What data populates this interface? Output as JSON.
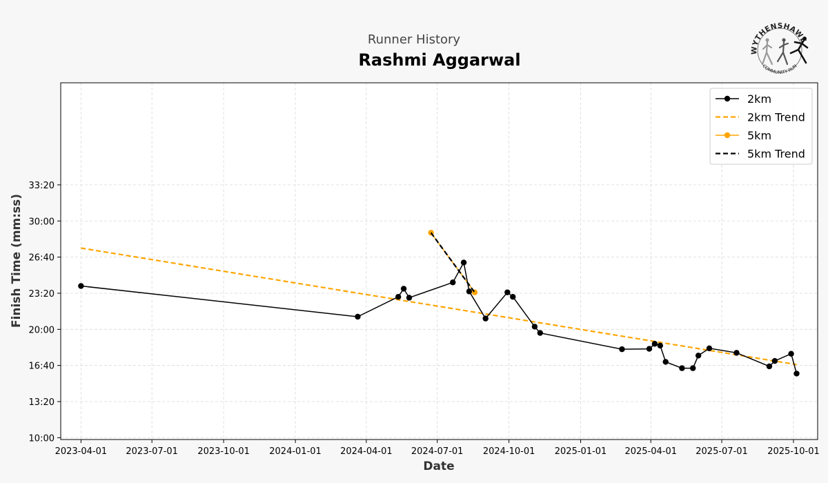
{
  "header": {
    "subtitle": "Runner History",
    "title": "Rashmi Aggarwal"
  },
  "logo": {
    "top_text": "WYTHENSHAWE",
    "bottom_text": "COMMUNITY RUN"
  },
  "chart_data": {
    "type": "line",
    "title": "Rashmi Aggarwal",
    "subtitle": "Runner History",
    "xlabel": "Date",
    "ylabel": "Finish Time (mm:ss)",
    "x_type": "date",
    "xlim": [
      "2023-03-06",
      "2025-11-01"
    ],
    "ylim_seconds": [
      590,
      2565
    ],
    "x_ticks": [
      "2023-04-01",
      "2023-07-01",
      "2023-10-01",
      "2024-01-01",
      "2024-04-01",
      "2024-07-01",
      "2024-10-01",
      "2025-01-01",
      "2025-04-01",
      "2025-07-01",
      "2025-10-01"
    ],
    "y_ticks": [
      "10:00",
      "13:20",
      "16:40",
      "20:00",
      "23:20",
      "26:40",
      "30:00",
      "33:20"
    ],
    "grid": true,
    "legend_position": "top-right",
    "series": [
      {
        "name": "2km",
        "style": "line-marker",
        "color": "#000000",
        "points": [
          [
            "2023-04-01",
            "24:00"
          ],
          [
            "2024-03-21",
            "21:10"
          ],
          [
            "2024-05-12",
            "23:00"
          ],
          [
            "2024-05-19",
            "23:45"
          ],
          [
            "2024-05-26",
            "22:55"
          ],
          [
            "2024-07-21",
            "24:20"
          ],
          [
            "2024-08-04",
            "26:10"
          ],
          [
            "2024-08-11",
            "23:30"
          ],
          [
            "2024-09-01",
            "21:00"
          ],
          [
            "2024-09-29",
            "23:25"
          ],
          [
            "2024-10-06",
            "23:00"
          ],
          [
            "2024-11-03",
            "20:15"
          ],
          [
            "2024-11-10",
            "19:40"
          ],
          [
            "2025-02-23",
            "18:10"
          ],
          [
            "2025-03-30",
            "18:12"
          ],
          [
            "2025-04-06",
            "18:40"
          ],
          [
            "2025-04-13",
            "18:30"
          ],
          [
            "2025-04-20",
            "17:00"
          ],
          [
            "2025-05-11",
            "16:25"
          ],
          [
            "2025-05-25",
            "16:25"
          ],
          [
            "2025-06-01",
            "17:35"
          ],
          [
            "2025-06-15",
            "18:15"
          ],
          [
            "2025-07-20",
            "17:50"
          ],
          [
            "2025-08-31",
            "16:35"
          ],
          [
            "2025-09-07",
            "17:05"
          ],
          [
            "2025-09-28",
            "17:45"
          ],
          [
            "2025-10-05",
            "15:55"
          ]
        ]
      },
      {
        "name": "2km Trend",
        "style": "dashed",
        "color": "#FFA500",
        "points": [
          [
            "2023-04-01",
            "27:30"
          ],
          [
            "2025-10-05",
            "16:45"
          ]
        ]
      },
      {
        "name": "5km",
        "style": "line-marker",
        "color": "#FFA500",
        "points": [
          [
            "2024-06-23",
            "28:55"
          ],
          [
            "2024-08-18",
            "23:25"
          ]
        ]
      },
      {
        "name": "5km Trend",
        "style": "dashed",
        "color": "#000000",
        "points": [
          [
            "2024-06-23",
            "28:55"
          ],
          [
            "2024-08-18",
            "23:25"
          ]
        ]
      }
    ]
  }
}
